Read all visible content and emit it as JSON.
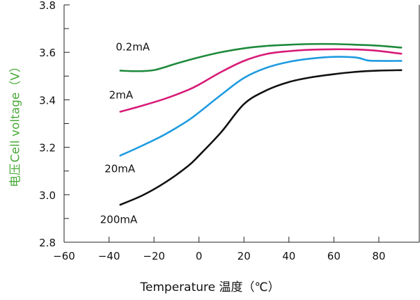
{
  "chart_data": {
    "type": "line",
    "title": "",
    "xlabel": "Temperature 温度（℃）",
    "ylabel_cn": "电压",
    "ylabel_en": "Cell voltage（V）",
    "xlim": [
      -60,
      98
    ],
    "ylim": [
      2.8,
      3.8
    ],
    "x_ticks": [
      -60,
      -40,
      -20,
      0,
      20,
      40,
      60,
      80
    ],
    "x_tick_labels": [
      "−60",
      "−40",
      "−20",
      "0",
      "20",
      "40",
      "60",
      "80"
    ],
    "y_ticks": [
      2.8,
      3.0,
      3.2,
      3.4,
      3.6,
      3.8
    ],
    "y_tick_labels": [
      "2.8",
      "3.0",
      "3.2",
      "3.4",
      "3.6",
      "3.8"
    ],
    "minor_y_ticks": [
      2.9,
      3.1,
      3.3,
      3.5,
      3.7
    ],
    "grid": false,
    "colors": {
      "ylabel": "#4aaa3a",
      "axis": "#222222"
    },
    "series": [
      {
        "name": "0.2mA",
        "color": "#1e8a3c",
        "x": [
          -35,
          -30,
          -25,
          -20,
          -15,
          -10,
          0,
          10,
          20,
          30,
          40,
          50,
          60,
          70,
          80,
          90
        ],
        "y": [
          3.523,
          3.521,
          3.521,
          3.525,
          3.538,
          3.553,
          3.579,
          3.601,
          3.617,
          3.627,
          3.632,
          3.635,
          3.635,
          3.632,
          3.628,
          3.62
        ],
        "label_pos": {
          "x": -37,
          "y": 3.608
        }
      },
      {
        "name": "2mA",
        "color": "#d81b78",
        "x": [
          -35,
          -25,
          -15,
          -5,
          0,
          10,
          20,
          30,
          40,
          50,
          60,
          70,
          80,
          90
        ],
        "y": [
          3.35,
          3.376,
          3.405,
          3.441,
          3.464,
          3.518,
          3.564,
          3.593,
          3.605,
          3.611,
          3.613,
          3.612,
          3.606,
          3.594
        ],
        "label_pos": {
          "x": -40,
          "y": 3.405
        }
      },
      {
        "name": "20mA",
        "color": "#1e9be0",
        "x": [
          -35,
          -25,
          -15,
          -5,
          0,
          10,
          20,
          30,
          40,
          50,
          60,
          70,
          75,
          80,
          90
        ],
        "y": [
          3.165,
          3.208,
          3.255,
          3.312,
          3.347,
          3.422,
          3.492,
          3.535,
          3.56,
          3.574,
          3.581,
          3.578,
          3.566,
          3.564,
          3.564
        ],
        "label_pos": {
          "x": -42,
          "y": 3.095
        }
      },
      {
        "name": "200mA",
        "color": "#111111",
        "x": [
          -35,
          -25,
          -15,
          -5,
          0,
          10,
          20,
          30,
          40,
          50,
          60,
          70,
          80,
          90
        ],
        "y": [
          2.958,
          2.998,
          3.052,
          3.12,
          3.165,
          3.265,
          3.382,
          3.44,
          3.475,
          3.495,
          3.508,
          3.518,
          3.523,
          3.525
        ],
        "label_pos": {
          "x": -44,
          "y": 2.88
        }
      }
    ]
  }
}
